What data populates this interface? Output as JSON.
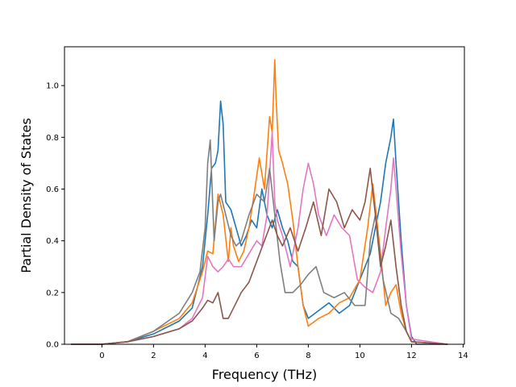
{
  "chart_data": {
    "type": "line",
    "title": "",
    "xlabel": "Frequency (THz)",
    "ylabel": "Partial Density of States",
    "xlim": [
      -1.45,
      14.05
    ],
    "ylim": [
      0.0,
      1.15
    ],
    "xticks": [
      0,
      2,
      4,
      6,
      8,
      10,
      12,
      14
    ],
    "xtick_labels": [
      "0",
      "2",
      "4",
      "6",
      "8",
      "10",
      "12",
      "14"
    ],
    "yticks": [
      0.0,
      0.2,
      0.4,
      0.6,
      0.8,
      1.0
    ],
    "ytick_labels": [
      "0.0",
      "0.2",
      "0.4",
      "0.6",
      "0.8",
      "1.0"
    ],
    "grid": false,
    "legend": "none",
    "series": [
      {
        "color": "#1f77b4",
        "x": [
          -1.2,
          0,
          1,
          2,
          3,
          3.5,
          3.9,
          4.1,
          4.25,
          4.4,
          4.5,
          4.6,
          4.7,
          4.8,
          5.0,
          5.2,
          5.4,
          5.6,
          5.8,
          6.0,
          6.2,
          6.4,
          6.6,
          6.8,
          7.0,
          7.2,
          7.4,
          7.6,
          7.8,
          8.0,
          8.4,
          8.8,
          9.2,
          9.6,
          10.0,
          10.4,
          10.8,
          11.0,
          11.2,
          11.3,
          11.4,
          11.6,
          11.8,
          12.0,
          12.2,
          13.4
        ],
        "y": [
          0,
          0,
          0.01,
          0.04,
          0.09,
          0.14,
          0.3,
          0.5,
          0.68,
          0.7,
          0.75,
          0.94,
          0.85,
          0.55,
          0.52,
          0.45,
          0.38,
          0.42,
          0.48,
          0.45,
          0.6,
          0.5,
          0.45,
          0.52,
          0.45,
          0.4,
          0.32,
          0.3,
          0.15,
          0.1,
          0.13,
          0.16,
          0.12,
          0.15,
          0.25,
          0.35,
          0.55,
          0.7,
          0.8,
          0.87,
          0.7,
          0.4,
          0.15,
          0.03,
          0,
          0
        ]
      },
      {
        "color": "#ff7f0e",
        "x": [
          -1.2,
          0,
          1,
          2,
          3,
          3.5,
          3.9,
          4.1,
          4.3,
          4.5,
          4.7,
          4.9,
          5.0,
          5.1,
          5.3,
          5.5,
          5.7,
          5.9,
          6.1,
          6.3,
          6.5,
          6.6,
          6.7,
          6.75,
          6.85,
          7.0,
          7.2,
          7.4,
          7.6,
          7.8,
          8.0,
          8.4,
          8.8,
          9.2,
          9.6,
          10.0,
          10.3,
          10.5,
          10.8,
          11.0,
          11.2,
          11.4,
          11.6,
          11.8,
          12.0,
          13.4
        ],
        "y": [
          0,
          0,
          0.01,
          0.05,
          0.1,
          0.16,
          0.28,
          0.36,
          0.35,
          0.58,
          0.5,
          0.32,
          0.45,
          0.38,
          0.32,
          0.36,
          0.45,
          0.58,
          0.72,
          0.6,
          0.88,
          0.82,
          1.1,
          0.95,
          0.75,
          0.7,
          0.62,
          0.48,
          0.3,
          0.15,
          0.07,
          0.1,
          0.12,
          0.16,
          0.18,
          0.25,
          0.45,
          0.62,
          0.35,
          0.15,
          0.2,
          0.23,
          0.12,
          0.05,
          0.01,
          0
        ]
      },
      {
        "color": "#e377c2",
        "x": [
          -1.2,
          0,
          1,
          2,
          3,
          3.5,
          3.9,
          4.1,
          4.3,
          4.5,
          4.7,
          4.9,
          5.1,
          5.4,
          5.7,
          6.0,
          6.2,
          6.4,
          6.6,
          6.7,
          6.8,
          7.0,
          7.3,
          7.6,
          7.8,
          8.0,
          8.2,
          8.4,
          8.7,
          9.0,
          9.3,
          9.6,
          9.9,
          10.2,
          10.5,
          10.8,
          11.0,
          11.2,
          11.3,
          11.4,
          11.6,
          11.8,
          12.0,
          13.4
        ],
        "y": [
          0,
          0,
          0.01,
          0.03,
          0.06,
          0.1,
          0.18,
          0.34,
          0.3,
          0.28,
          0.3,
          0.33,
          0.3,
          0.3,
          0.35,
          0.4,
          0.38,
          0.5,
          0.82,
          0.55,
          0.48,
          0.42,
          0.3,
          0.45,
          0.6,
          0.7,
          0.62,
          0.5,
          0.42,
          0.5,
          0.45,
          0.42,
          0.25,
          0.22,
          0.2,
          0.28,
          0.45,
          0.6,
          0.72,
          0.6,
          0.35,
          0.15,
          0.02,
          0
        ]
      },
      {
        "color": "#7f7f7f",
        "x": [
          -1.2,
          0,
          1,
          2,
          3,
          3.5,
          3.8,
          4.0,
          4.1,
          4.2,
          4.35,
          4.5,
          4.6,
          4.8,
          5.0,
          5.2,
          5.4,
          5.7,
          6.0,
          6.3,
          6.5,
          6.7,
          6.9,
          7.1,
          7.4,
          7.7,
          8.0,
          8.3,
          8.6,
          9.0,
          9.4,
          9.8,
          10.2,
          10.4,
          10.6,
          10.9,
          11.2,
          11.5,
          11.8,
          12.0,
          13.4
        ],
        "y": [
          0,
          0,
          0.01,
          0.05,
          0.12,
          0.2,
          0.28,
          0.45,
          0.7,
          0.79,
          0.4,
          0.55,
          0.58,
          0.5,
          0.42,
          0.38,
          0.4,
          0.5,
          0.58,
          0.55,
          0.68,
          0.5,
          0.32,
          0.2,
          0.2,
          0.23,
          0.27,
          0.3,
          0.2,
          0.18,
          0.2,
          0.15,
          0.15,
          0.4,
          0.5,
          0.25,
          0.12,
          0.1,
          0.05,
          0.01,
          0
        ]
      },
      {
        "color": "#8c564b",
        "x": [
          -1.2,
          0,
          1,
          2,
          3,
          3.5,
          3.9,
          4.1,
          4.3,
          4.5,
          4.7,
          4.9,
          5.1,
          5.4,
          5.7,
          6.0,
          6.3,
          6.6,
          6.8,
          7.0,
          7.3,
          7.6,
          7.9,
          8.2,
          8.5,
          8.8,
          9.1,
          9.4,
          9.7,
          10.0,
          10.2,
          10.4,
          10.6,
          10.8,
          11.0,
          11.2,
          11.4,
          11.6,
          11.8,
          12.0,
          13.4
        ],
        "y": [
          0,
          0,
          0.01,
          0.03,
          0.06,
          0.09,
          0.14,
          0.17,
          0.16,
          0.2,
          0.1,
          0.1,
          0.14,
          0.2,
          0.24,
          0.32,
          0.4,
          0.48,
          0.42,
          0.38,
          0.45,
          0.36,
          0.45,
          0.55,
          0.42,
          0.6,
          0.55,
          0.45,
          0.52,
          0.48,
          0.55,
          0.68,
          0.5,
          0.3,
          0.38,
          0.48,
          0.3,
          0.15,
          0.05,
          0.01,
          0
        ]
      }
    ]
  }
}
